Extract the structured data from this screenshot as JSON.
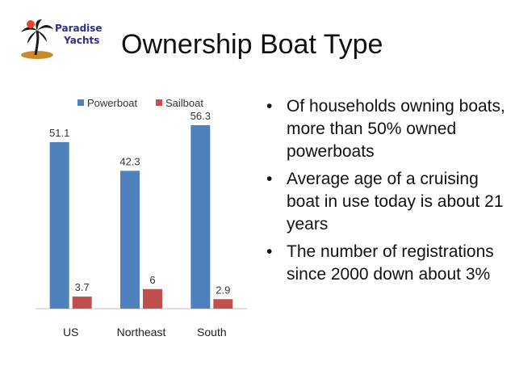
{
  "logo": {
    "line1": "Paradise",
    "line2": "Yachts"
  },
  "slide_title": "Ownership Boat Type",
  "colors": {
    "powerboat": "#4f81bd",
    "sailboat": "#c0504d",
    "axis": "#bfbfbf"
  },
  "chart_data": {
    "type": "bar",
    "title": "",
    "categories": [
      "US",
      "Northeast",
      "South"
    ],
    "series": [
      {
        "name": "Powerboat",
        "values": [
          51.1,
          42.3,
          56.3
        ]
      },
      {
        "name": "Sailboat",
        "values": [
          3.7,
          6,
          2.9
        ]
      }
    ],
    "data_labels": [
      [
        "51.1",
        "42.3",
        "56.3"
      ],
      [
        "3.7",
        "6",
        "2.9"
      ]
    ],
    "ylim": [
      0,
      60
    ],
    "grid": false,
    "legend": "top"
  },
  "bullets": [
    "Of households owning boats, more than 50% owned powerboats",
    "Average age of a cruising boat in use today is about 21 years",
    "The number of registrations since 2000 down about 3%"
  ]
}
